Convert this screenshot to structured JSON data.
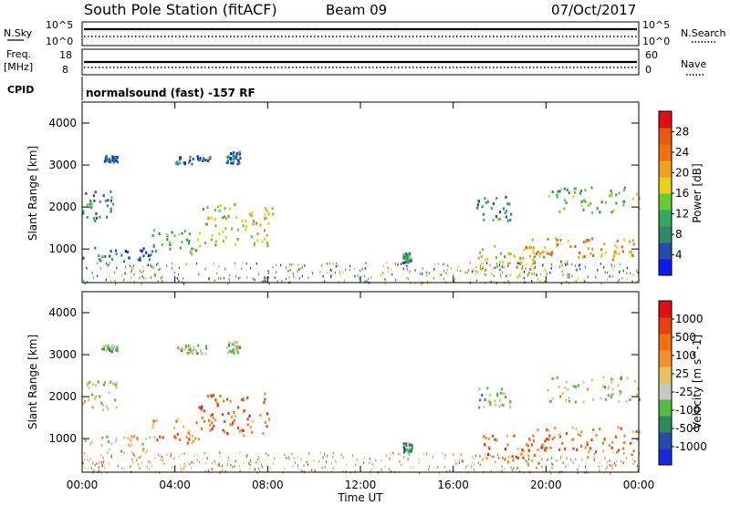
{
  "header": {
    "station": "South Pole Station (fitACF)",
    "beam": "Beam 09",
    "date": "07/Oct/2017"
  },
  "panels": {
    "nsky_label": "N.Sky",
    "nsearch_label": "N.Search",
    "scale_top": "10^5",
    "scale_bottom": "10^0",
    "freq_label": "Freq.",
    "freq_unit": "[MHz]",
    "freq_top": "18",
    "freq_bottom": "8",
    "nave_label": "Nave",
    "nave_top": "60",
    "nave_bottom": "0",
    "cpid_label": "CPID",
    "cpid_text": "normalsound (fast) -157 RF"
  },
  "chart_data": [
    {
      "type": "heatmap",
      "name": "power",
      "ylabel": "Slant Range [km]",
      "xlabel": "",
      "ylim": [
        200,
        4500
      ],
      "xlim": [
        0,
        24
      ],
      "yticks": [
        "1000",
        "2000",
        "3000",
        "4000"
      ],
      "colorbar": {
        "label": "Power [dB]",
        "ticks": [
          "4",
          "8",
          "12",
          "16",
          "20",
          "24",
          "28"
        ],
        "colors": [
          "#0a1cf0",
          "#2a4aa8",
          "#2e8a6a",
          "#35a860",
          "#66cc33",
          "#e8d020",
          "#f0a020",
          "#f07010",
          "#e85a10",
          "#e01010"
        ]
      },
      "echo_regions": [
        {
          "t0": 0.0,
          "t1": 3.0,
          "r0": 700,
          "r1": 1100,
          "level": 0.2
        },
        {
          "t0": 0.0,
          "t1": 1.5,
          "r0": 1700,
          "r1": 2400,
          "level": 0.25
        },
        {
          "t0": 0.8,
          "t1": 1.5,
          "r0": 3100,
          "r1": 3250,
          "level": 0.2
        },
        {
          "t0": 4.0,
          "t1": 5.5,
          "r0": 3050,
          "r1": 3250,
          "level": 0.15
        },
        {
          "t0": 6.2,
          "t1": 6.8,
          "r0": 3050,
          "r1": 3350,
          "level": 0.2
        },
        {
          "t0": 3.0,
          "t1": 5.0,
          "r0": 900,
          "r1": 1500,
          "level": 0.4
        },
        {
          "t0": 5.0,
          "t1": 8.2,
          "r0": 1100,
          "r1": 2100,
          "level": 0.55
        },
        {
          "t0": 13.8,
          "t1": 14.2,
          "r0": 700,
          "r1": 950,
          "level": 0.3
        },
        {
          "t0": 17.0,
          "t1": 20.0,
          "r0": 400,
          "r1": 1100,
          "level": 0.55
        },
        {
          "t0": 19.0,
          "t1": 24.0,
          "r0": 700,
          "r1": 1300,
          "level": 0.7
        },
        {
          "t0": 17.0,
          "t1": 18.5,
          "r0": 1700,
          "r1": 2300,
          "level": 0.3
        },
        {
          "t0": 20.0,
          "t1": 24.0,
          "r0": 1900,
          "r1": 2500,
          "level": 0.4
        }
      ]
    },
    {
      "type": "heatmap",
      "name": "velocity",
      "ylabel": "Slant Range [km]",
      "xlabel": "Time UT",
      "ylim": [
        200,
        4500
      ],
      "xlim": [
        0,
        24
      ],
      "yticks": [
        "1000",
        "2000",
        "3000",
        "4000"
      ],
      "xticks": [
        "00:00",
        "04:00",
        "08:00",
        "12:00",
        "16:00",
        "20:00",
        "00:00"
      ],
      "colorbar": {
        "label": "Velocity [m s^-1]",
        "ticks": [
          "1000",
          "500",
          "100",
          "25",
          "-25",
          "-100",
          "-500",
          "-1000"
        ],
        "colors": [
          "#1a2ad8",
          "#2a4aa8",
          "#2e8a5a",
          "#55bb44",
          "#c8c8c0",
          "#e8c060",
          "#f09030",
          "#f07010",
          "#e84010",
          "#e01010"
        ]
      },
      "echo_regions": [
        {
          "t0": 0.0,
          "t1": 3.0,
          "r0": 700,
          "r1": 1100,
          "level": 0.5
        },
        {
          "t0": 0.0,
          "t1": 1.5,
          "r0": 1700,
          "r1": 2400,
          "level": 0.5
        },
        {
          "t0": 0.8,
          "t1": 1.5,
          "r0": 3100,
          "r1": 3250,
          "level": 0.4
        },
        {
          "t0": 4.0,
          "t1": 5.5,
          "r0": 3050,
          "r1": 3250,
          "level": 0.4
        },
        {
          "t0": 6.2,
          "t1": 6.8,
          "r0": 3050,
          "r1": 3350,
          "level": 0.45
        },
        {
          "t0": 3.0,
          "t1": 5.0,
          "r0": 900,
          "r1": 1500,
          "level": 0.7
        },
        {
          "t0": 5.0,
          "t1": 8.2,
          "r0": 1100,
          "r1": 2100,
          "level": 0.75
        },
        {
          "t0": 13.8,
          "t1": 14.2,
          "r0": 700,
          "r1": 950,
          "level": 0.25
        },
        {
          "t0": 17.0,
          "t1": 20.0,
          "r0": 400,
          "r1": 1100,
          "level": 0.75
        },
        {
          "t0": 19.0,
          "t1": 24.0,
          "r0": 700,
          "r1": 1300,
          "level": 0.72
        },
        {
          "t0": 17.0,
          "t1": 18.5,
          "r0": 1700,
          "r1": 2300,
          "level": 0.45
        },
        {
          "t0": 20.0,
          "t1": 24.0,
          "r0": 1900,
          "r1": 2500,
          "level": 0.45
        }
      ]
    }
  ]
}
